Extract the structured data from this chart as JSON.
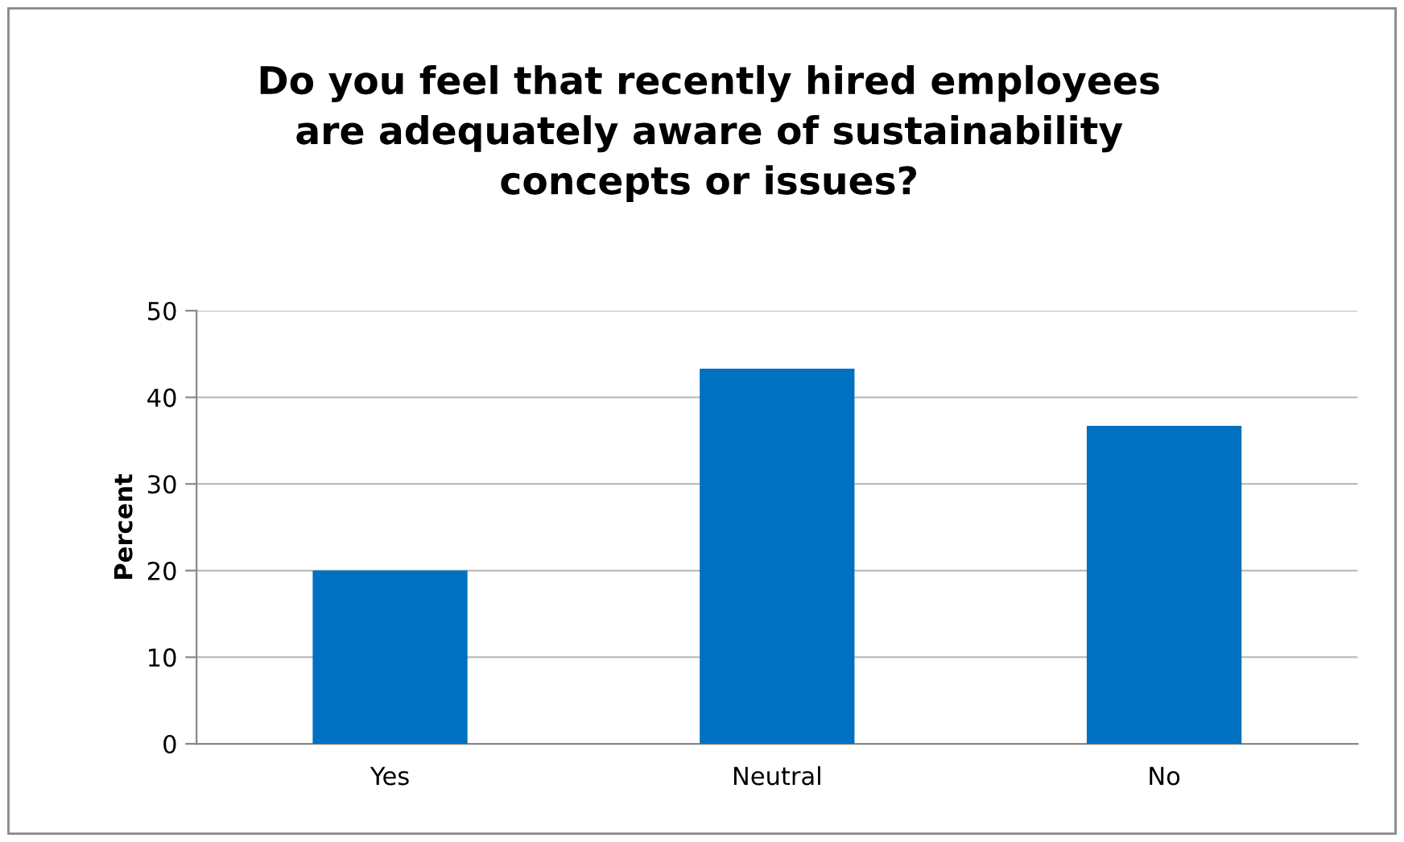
{
  "chart_data": {
    "type": "bar",
    "title": "Do you feel that recently hired employees\nare adequately aware of sustainability\nconcepts or issues?",
    "ylabel": "Percent",
    "categories": [
      "Yes",
      "Neutral",
      "No"
    ],
    "values": [
      20,
      43.3,
      36.7
    ],
    "color": "#0070c0",
    "ylim": [
      0,
      50
    ],
    "yticks": [
      0,
      10,
      20,
      30,
      40,
      50
    ],
    "grid": "y",
    "legend": false
  }
}
